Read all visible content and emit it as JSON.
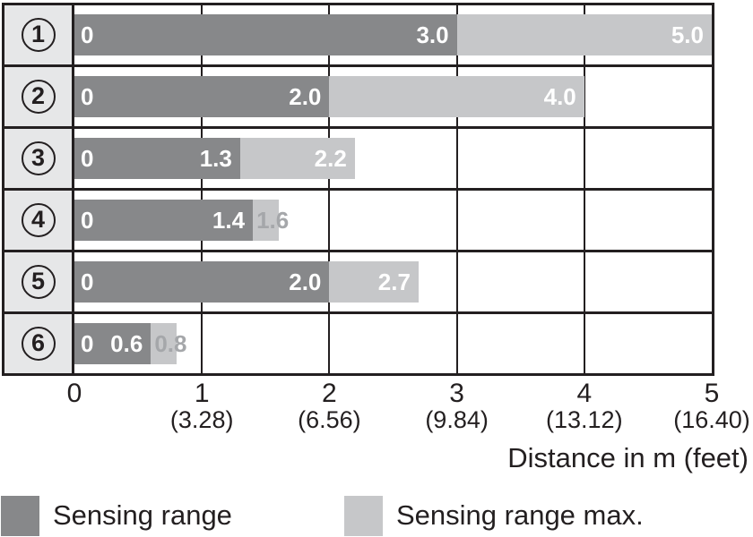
{
  "chart_data": {
    "type": "bar",
    "orientation": "horizontal",
    "xlabel": "Distance in m (feet)",
    "xlim": [
      0,
      5
    ],
    "grid": "on",
    "x_ticks": [
      {
        "m": "0",
        "feet": ""
      },
      {
        "m": "1",
        "feet": "(3.28)"
      },
      {
        "m": "2",
        "feet": "(6.56)"
      },
      {
        "m": "3",
        "feet": "(9.84)"
      },
      {
        "m": "4",
        "feet": "(13.12)"
      },
      {
        "m": "5",
        "feet": "(16.40)"
      }
    ],
    "rows": [
      {
        "label": "1",
        "zero_label": "0",
        "sensing_range": 3.0,
        "sensing_label": "3.0",
        "max_range": 5.0,
        "max_label": "5.0",
        "max_label_placement": "inside"
      },
      {
        "label": "2",
        "zero_label": "0",
        "sensing_range": 2.0,
        "sensing_label": "2.0",
        "max_range": 4.0,
        "max_label": "4.0",
        "max_label_placement": "inside"
      },
      {
        "label": "3",
        "zero_label": "0",
        "sensing_range": 1.3,
        "sensing_label": "1.3",
        "max_range": 2.2,
        "max_label": "2.2",
        "max_label_placement": "inside"
      },
      {
        "label": "4",
        "zero_label": "0",
        "sensing_range": 1.4,
        "sensing_label": "1.4",
        "max_range": 1.6,
        "max_label": "1.6",
        "max_label_placement": "outside"
      },
      {
        "label": "5",
        "zero_label": "0",
        "sensing_range": 2.0,
        "sensing_label": "2.0",
        "max_range": 2.7,
        "max_label": "2.7",
        "max_label_placement": "inside"
      },
      {
        "label": "6",
        "zero_label": "0",
        "sensing_range": 0.6,
        "sensing_label": "0.6",
        "max_range": 0.8,
        "max_label": "0.8",
        "max_label_placement": "outside"
      }
    ],
    "legend": [
      {
        "label": "Sensing range",
        "color": "#87888A"
      },
      {
        "label": "Sensing range max.",
        "color": "#C6C7C9"
      }
    ],
    "legend_position": "bottom"
  },
  "colors": {
    "sensing_bar": "#87888A",
    "max_bar": "#C6C7C9",
    "row_label_bg": "#E6E7E8",
    "line": "#231F20",
    "bar_text": "#FFFFFF",
    "outside_value_text": "#A5A7AA",
    "axis_text": "#231F20",
    "background": "#FFFFFF"
  }
}
